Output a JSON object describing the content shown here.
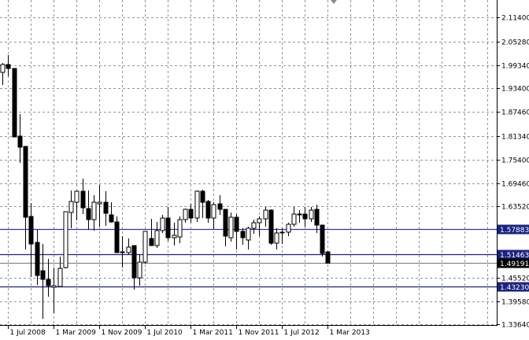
{
  "chart_data": {
    "type": "candlestick",
    "title": "",
    "xlabel": "",
    "ylabel": "",
    "ylim": [
      1.3364,
      2.1146
    ],
    "grid": true,
    "y_ticks": [
      "2.11400",
      "2.05280",
      "1.99340",
      "1.93400",
      "1.87460",
      "1.81340",
      "1.75400",
      "1.69460",
      "1.63520",
      "1.45520",
      "1.39580",
      "1.33640"
    ],
    "x_ticks": [
      {
        "label": "1 Jul 2008",
        "month": 1
      },
      {
        "label": "1 Mar 2009",
        "month": 9
      },
      {
        "label": "1 Nov 2009",
        "month": 17
      },
      {
        "label": "1 Jul 2010",
        "month": 25
      },
      {
        "label": "1 Mar 2011",
        "month": 33
      },
      {
        "label": "1 Nov 2011",
        "month": 41
      },
      {
        "label": "1 Jul 2012",
        "month": 49
      },
      {
        "label": "1 Mar 2013",
        "month": 57
      }
    ],
    "levels": [
      {
        "value": "1.57883",
        "color": "#3333aa",
        "label_bg": "#1a237e"
      },
      {
        "value": "1.51463",
        "color": "#1a237e",
        "label_bg": "#1a237e"
      },
      {
        "value": "1.49191",
        "color": "#808890",
        "label_bg": "#000000"
      },
      {
        "value": "1.43230",
        "color": "#1a237e",
        "label_bg": "#1a237e"
      }
    ],
    "columns": [
      "open",
      "high",
      "low",
      "close"
    ],
    "candles": [
      [
        1.9746,
        1.9985,
        1.9427,
        1.9945
      ],
      [
        1.9945,
        2.0184,
        1.9646,
        1.9845
      ],
      [
        1.9845,
        1.9845,
        1.8112,
        1.8112
      ],
      [
        1.8132,
        1.869,
        1.7455,
        1.7853
      ],
      [
        1.7873,
        1.7873,
        1.5263,
        1.608
      ],
      [
        1.61,
        1.6439,
        1.4566,
        1.5403
      ],
      [
        1.5443,
        1.5762,
        1.4367,
        1.4606
      ],
      [
        1.4726,
        1.5403,
        1.3511,
        1.4507
      ],
      [
        1.4507,
        1.5024,
        1.4069,
        1.4347
      ],
      [
        1.4307,
        1.4805,
        1.365,
        1.4347
      ],
      [
        1.4327,
        1.5084,
        1.4307,
        1.4785
      ],
      [
        1.4805,
        1.622,
        1.4785,
        1.622
      ],
      [
        1.62,
        1.6757,
        1.5801,
        1.6479
      ],
      [
        1.6459,
        1.6757,
        1.6001,
        1.6738
      ],
      [
        1.6738,
        1.7056,
        1.616,
        1.6319
      ],
      [
        1.6299,
        1.6757,
        1.5762,
        1.602
      ],
      [
        1.602,
        1.6638,
        1.5742,
        1.6459
      ],
      [
        1.6419,
        1.6897,
        1.5841,
        1.6459
      ],
      [
        1.6459,
        1.6738,
        1.5861,
        1.618
      ],
      [
        1.614,
        1.6459,
        1.5941,
        1.5961
      ],
      [
        1.5961,
        1.61,
        1.5184,
        1.5184
      ],
      [
        1.5184,
        1.5602,
        1.4805,
        1.5204
      ],
      [
        1.5184,
        1.5542,
        1.5144,
        1.5323
      ],
      [
        1.5363,
        1.5363,
        1.4248,
        1.4546
      ],
      [
        1.4546,
        1.5144,
        1.4347,
        1.4944
      ],
      [
        1.4944,
        1.5722,
        1.4905,
        1.5722
      ],
      [
        1.5542,
        1.604,
        1.5363,
        1.5363
      ],
      [
        1.5363,
        1.5961,
        1.5303,
        1.5742
      ],
      [
        1.5742,
        1.614,
        1.5682,
        1.606
      ],
      [
        1.606,
        1.6339,
        1.5483,
        1.5562
      ],
      [
        1.5562,
        1.5941,
        1.5363,
        1.5622
      ],
      [
        1.5582,
        1.61,
        1.5423,
        1.602
      ],
      [
        1.602,
        1.6299,
        1.5941,
        1.628
      ],
      [
        1.628,
        1.6419,
        1.5941,
        1.606
      ],
      [
        1.606,
        1.6757,
        1.5961,
        1.6738
      ],
      [
        1.6738,
        1.6777,
        1.606,
        1.6459
      ],
      [
        1.6479,
        1.6519,
        1.5941,
        1.606
      ],
      [
        1.606,
        1.6459,
        1.5781,
        1.6399
      ],
      [
        1.6419,
        1.6638,
        1.614,
        1.628
      ],
      [
        1.628,
        1.628,
        1.5343,
        1.5602
      ],
      [
        1.5562,
        1.62,
        1.5463,
        1.608
      ],
      [
        1.608,
        1.616,
        1.5263,
        1.5722
      ],
      [
        1.5722,
        1.5801,
        1.5383,
        1.5562
      ],
      [
        1.5503,
        1.5841,
        1.5263,
        1.5801
      ],
      [
        1.5801,
        1.602,
        1.5662,
        1.5941
      ],
      [
        1.5941,
        1.61,
        1.5602,
        1.604
      ],
      [
        1.604,
        1.6339,
        1.5841,
        1.626
      ],
      [
        1.626,
        1.628,
        1.5383,
        1.5423
      ],
      [
        1.5423,
        1.5801,
        1.5263,
        1.5682
      ],
      [
        1.5702,
        1.5801,
        1.5403,
        1.5682
      ],
      [
        1.5702,
        1.5941,
        1.5602,
        1.5901
      ],
      [
        1.5901,
        1.6339,
        1.5841,
        1.616
      ],
      [
        1.616,
        1.626,
        1.5941,
        1.614
      ],
      [
        1.616,
        1.6339,
        1.5841,
        1.604
      ],
      [
        1.604,
        1.6339,
        1.5961,
        1.626
      ],
      [
        1.628,
        1.6399,
        1.5682,
        1.5881
      ],
      [
        1.5881,
        1.5881,
        1.5084,
        1.5164
      ],
      [
        1.5204,
        1.5224,
        1.4905,
        1.4919
      ]
    ]
  }
}
